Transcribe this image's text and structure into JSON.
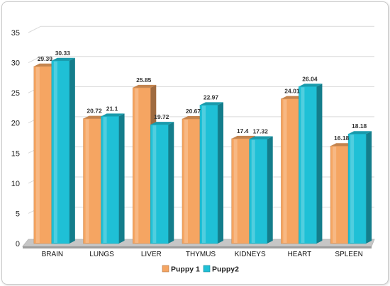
{
  "chart_data": {
    "type": "bar",
    "categories": [
      "BRAIN",
      "LUNGS",
      "LIVER",
      "THYMUS",
      "KIDNEYS",
      "HEART",
      "SPLEEN"
    ],
    "series": [
      {
        "name": "Puppy 1",
        "values": [
          29.39,
          20.72,
          25.85,
          20.67,
          17.4,
          24.01,
          16.18
        ],
        "labels": [
          "29.39",
          "20.72",
          "25.85",
          "20.67",
          "17.4",
          "24.01",
          "16.18"
        ],
        "color": "#f5a562"
      },
      {
        "name": "Puppy2",
        "values": [
          30.33,
          21.1,
          19.72,
          22.97,
          17.32,
          26.04,
          18.18
        ],
        "labels": [
          "30.33",
          "21.1",
          "19.72",
          "22.97",
          "17.32",
          "26.04",
          "18.18"
        ],
        "color": "#1fc0d6"
      }
    ],
    "yticks": [
      "0",
      "5",
      "10",
      "15",
      "20",
      "25",
      "30",
      "35"
    ],
    "ylim": [
      0,
      35
    ],
    "grid": true,
    "legend": "bottom"
  }
}
